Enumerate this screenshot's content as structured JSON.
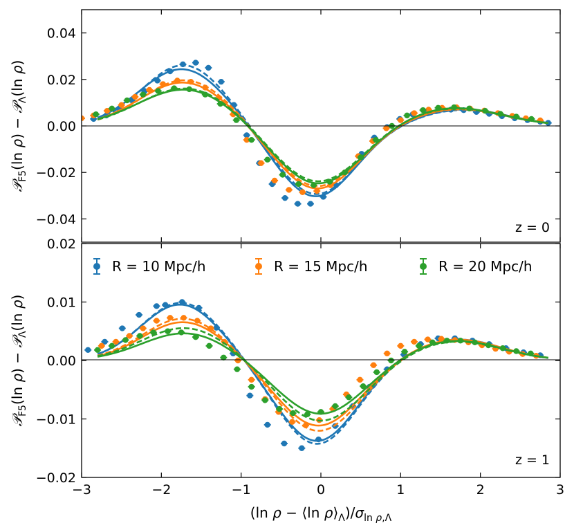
{
  "figure": {
    "xlabel": "(ln ρ − ⟨ln ρ⟩Λ)/σln ρ,Λ",
    "colors": {
      "R10": "#1f77b4",
      "R15": "#ff7f0e",
      "R20": "#2ca02c"
    }
  },
  "chart_data": [
    {
      "type": "scatter",
      "panel": "top",
      "annotation": "z = 0",
      "ylabel": "PF5(ln ρ) − PΛ(ln ρ)",
      "xlim": [
        -3,
        3
      ],
      "ylim": [
        -0.05,
        0.05
      ],
      "x_ticks": [
        -3,
        -2,
        -1,
        0,
        1,
        2,
        3
      ],
      "x_tick_labels": [
        "",
        "",
        "",
        "",
        "",
        "",
        ""
      ],
      "y_ticks": [
        -0.04,
        -0.02,
        0.0,
        0.02,
        0.04
      ],
      "y_tick_labels": [
        "−0.04",
        "−0.02",
        "0.00",
        "0.02",
        "0.04"
      ],
      "series": [
        {
          "name": "R = 10 Mpc/h",
          "color": "#1f77b4",
          "x": [
            -2.85,
            -2.69,
            -2.53,
            -2.37,
            -2.21,
            -2.05,
            -1.89,
            -1.73,
            -1.57,
            -1.41,
            -1.25,
            -1.09,
            -0.93,
            -0.77,
            -0.61,
            -0.45,
            -0.29,
            -0.13,
            0.03,
            0.19,
            0.35,
            0.51,
            0.67,
            0.83,
            0.99,
            1.15,
            1.31,
            1.47,
            1.63,
            1.79,
            1.95,
            2.11,
            2.27,
            2.43,
            2.59,
            2.75,
            2.85
          ],
          "y": [
            0.003,
            0.0045,
            0.0075,
            0.011,
            0.015,
            0.0195,
            0.0235,
            0.0265,
            0.0272,
            0.025,
            0.019,
            0.009,
            -0.004,
            -0.016,
            -0.025,
            -0.031,
            -0.0335,
            -0.0335,
            -0.0305,
            -0.0255,
            -0.019,
            -0.012,
            -0.005,
            -0.0005,
            0.003,
            0.005,
            0.0062,
            0.0068,
            0.007,
            0.0068,
            0.006,
            0.0052,
            0.0042,
            0.0033,
            0.0025,
            0.0018,
            0.0013
          ],
          "model_solid": {
            "amp1": 0.0245,
            "mu1": -1.74,
            "s1": 0.54,
            "amp2": -0.0305,
            "mu2": -0.07,
            "s2": 0.5,
            "amp3": 0.0071,
            "mu3": 1.78,
            "s3": 0.58
          },
          "model_dashed": {
            "amp1": 0.0262,
            "mu1": -1.72,
            "s1": 0.52,
            "amp2": -0.0295,
            "mu2": -0.06,
            "s2": 0.5,
            "amp3": 0.0069,
            "mu3": 1.78,
            "s3": 0.58
          }
        },
        {
          "name": "R = 15 Mpc/h",
          "color": "#ff7f0e",
          "x": [
            -3.0,
            -2.85,
            -2.68,
            -2.5,
            -2.33,
            -2.15,
            -1.98,
            -1.8,
            -1.63,
            -1.45,
            -1.28,
            -1.1,
            -0.93,
            -0.75,
            -0.58,
            -0.4,
            -0.23,
            -0.05,
            0.12,
            0.3,
            0.47,
            0.65,
            0.82,
            1.0,
            1.17,
            1.35,
            1.52,
            1.7,
            1.87,
            2.05,
            2.22,
            2.4,
            2.57,
            2.75
          ],
          "y": [
            0.0033,
            0.0045,
            0.0065,
            0.009,
            0.0125,
            0.0155,
            0.018,
            0.0195,
            0.019,
            0.0165,
            0.012,
            0.005,
            -0.006,
            -0.016,
            -0.0235,
            -0.0275,
            -0.0285,
            -0.028,
            -0.0255,
            -0.02,
            -0.013,
            -0.0065,
            -0.001,
            0.0025,
            0.0055,
            0.007,
            0.0078,
            0.008,
            0.0075,
            0.0066,
            0.0055,
            0.0043,
            0.0033,
            0.0024
          ],
          "model_solid": {
            "amp1": 0.0188,
            "mu1": -1.72,
            "s1": 0.56,
            "amp2": -0.0272,
            "mu2": -0.05,
            "s2": 0.52,
            "amp3": 0.0074,
            "mu3": 1.72,
            "s3": 0.6
          },
          "model_dashed": {
            "amp1": 0.0198,
            "mu1": -1.7,
            "s1": 0.55,
            "amp2": -0.0262,
            "mu2": -0.05,
            "s2": 0.52,
            "amp3": 0.0072,
            "mu3": 1.72,
            "s3": 0.6
          }
        },
        {
          "name": "R = 20 Mpc/h",
          "color": "#2ca02c",
          "x": [
            -2.82,
            -2.62,
            -2.43,
            -2.23,
            -2.04,
            -1.84,
            -1.65,
            -1.45,
            -1.26,
            -1.06,
            -0.87,
            -0.67,
            -0.48,
            -0.28,
            -0.09,
            0.11,
            0.3,
            0.5,
            0.69,
            0.89,
            1.08,
            1.28,
            1.47,
            1.67,
            1.86,
            2.06,
            2.25,
            2.45,
            2.64
          ],
          "y": [
            0.005,
            0.0075,
            0.011,
            0.0135,
            0.015,
            0.0162,
            0.0158,
            0.0135,
            0.0095,
            0.0025,
            -0.006,
            -0.0145,
            -0.021,
            -0.025,
            -0.0255,
            -0.024,
            -0.02,
            -0.0135,
            -0.006,
            0.0,
            0.0045,
            0.0068,
            0.0078,
            0.008,
            0.0075,
            0.0065,
            0.0052,
            0.004,
            0.003
          ],
          "model_solid": {
            "amp1": 0.0158,
            "mu1": -1.7,
            "s1": 0.6,
            "amp2": -0.0252,
            "mu2": -0.04,
            "s2": 0.54,
            "amp3": 0.0078,
            "mu3": 1.66,
            "s3": 0.62
          },
          "model_dashed": {
            "amp1": 0.0163,
            "mu1": -1.69,
            "s1": 0.59,
            "amp2": -0.0243,
            "mu2": -0.04,
            "s2": 0.54,
            "amp3": 0.0076,
            "mu3": 1.66,
            "s3": 0.62
          }
        }
      ]
    },
    {
      "type": "scatter",
      "panel": "bottom",
      "annotation": "z = 1",
      "ylabel": "PF5(ln ρ) − PΛ(ln ρ)",
      "xlim": [
        -3,
        3
      ],
      "ylim": [
        -0.02,
        0.02
      ],
      "x_ticks": [
        -3,
        -2,
        -1,
        0,
        1,
        2,
        3
      ],
      "x_tick_labels": [
        "−3",
        "−2",
        "−1",
        "0",
        "1",
        "2",
        "3"
      ],
      "y_ticks": [
        -0.02,
        -0.01,
        0.0,
        0.01,
        0.02
      ],
      "y_tick_labels": [
        "−0.02",
        "−0.01",
        "0.00",
        "0.01",
        "0.02"
      ],
      "legend": {
        "placement": "top",
        "entries": [
          "R = 10 Mpc/h",
          "R = 15 Mpc/h",
          "R = 20 Mpc/h"
        ]
      },
      "series": [
        {
          "name": "R = 10 Mpc/h",
          "color": "#1f77b4",
          "x": [
            -2.92,
            -2.71,
            -2.49,
            -2.28,
            -2.06,
            -1.95,
            -1.74,
            -1.53,
            -1.31,
            -1.1,
            -0.89,
            -0.67,
            -0.46,
            -0.24,
            -0.03,
            0.18,
            0.4,
            0.61,
            0.83,
            1.04,
            1.25,
            1.47,
            1.68,
            1.9,
            2.11,
            2.32,
            2.54,
            2.75
          ],
          "y": [
            0.0018,
            0.0032,
            0.0055,
            0.0078,
            0.0093,
            0.0095,
            0.01,
            0.009,
            0.0056,
            0.0012,
            -0.006,
            -0.011,
            -0.0142,
            -0.015,
            -0.0135,
            -0.0112,
            -0.0078,
            -0.0045,
            -0.0015,
            0.001,
            0.0028,
            0.0038,
            0.0038,
            0.0034,
            0.0028,
            0.0021,
            0.0014,
            0.0009
          ],
          "model_solid": {
            "amp1": 0.0096,
            "mu1": -1.76,
            "s1": 0.5,
            "amp2": -0.0138,
            "mu2": -0.05,
            "s2": 0.5,
            "amp3": 0.0036,
            "mu3": 1.72,
            "s3": 0.55
          },
          "model_dashed": {
            "amp1": 0.0099,
            "mu1": -1.75,
            "s1": 0.5,
            "amp2": -0.0143,
            "mu2": -0.05,
            "s2": 0.5,
            "amp3": 0.0035,
            "mu3": 1.72,
            "s3": 0.55
          }
        },
        {
          "name": "R = 15 Mpc/h",
          "color": "#ff7f0e",
          "x": [
            -2.75,
            -2.57,
            -2.4,
            -2.23,
            -2.06,
            -1.89,
            -1.72,
            -1.55,
            -1.38,
            -1.21,
            -1.04,
            -0.87,
            -0.7,
            -0.53,
            -0.36,
            -0.19,
            -0.02,
            0.15,
            0.32,
            0.49,
            0.66,
            0.83,
            1.0,
            1.17,
            1.34,
            1.51,
            1.68,
            1.85,
            2.02,
            2.19,
            2.36,
            2.53,
            2.7
          ],
          "y": [
            0.0025,
            0.0032,
            0.0042,
            0.0055,
            0.0068,
            0.0073,
            0.0073,
            0.0068,
            0.0055,
            0.0032,
            0.0,
            -0.0033,
            -0.0066,
            -0.0088,
            -0.0105,
            -0.0111,
            -0.0102,
            -0.0083,
            -0.0058,
            -0.0033,
            -0.0008,
            0.0012,
            0.0025,
            0.0032,
            0.0036,
            0.0037,
            0.0035,
            0.0031,
            0.0026,
            0.002,
            0.0015,
            0.0011,
            0.0008
          ],
          "model_solid": {
            "amp1": 0.0066,
            "mu1": -1.72,
            "s1": 0.52,
            "amp2": -0.0112,
            "mu2": -0.03,
            "s2": 0.52,
            "amp3": 0.0036,
            "mu3": 1.7,
            "s3": 0.57
          },
          "model_dashed": {
            "amp1": 0.0072,
            "mu1": -1.72,
            "s1": 0.52,
            "amp2": -0.0121,
            "mu2": -0.03,
            "s2": 0.52,
            "amp3": 0.0035,
            "mu3": 1.7,
            "s3": 0.57
          }
        },
        {
          "name": "R = 20 Mpc/h",
          "color": "#2ca02c",
          "x": [
            -2.8,
            -2.62,
            -2.45,
            -2.27,
            -2.1,
            -1.92,
            -1.75,
            -1.57,
            -1.4,
            -1.22,
            -1.05,
            -0.87,
            -0.7,
            -0.52,
            -0.35,
            -0.17,
            0.0,
            0.18,
            0.35,
            0.53,
            0.7,
            0.88,
            1.05,
            1.23,
            1.4,
            1.58,
            1.75,
            1.93,
            2.1,
            2.28,
            2.45,
            2.63
          ],
          "y": [
            0.0018,
            0.0025,
            0.0035,
            0.0042,
            0.0048,
            0.005,
            0.0048,
            0.004,
            0.0025,
            0.0005,
            -0.0015,
            -0.0045,
            -0.0068,
            -0.0083,
            -0.009,
            -0.0092,
            -0.0088,
            -0.0078,
            -0.0063,
            -0.0044,
            -0.002,
            0.0,
            0.0015,
            0.0025,
            0.0031,
            0.0034,
            0.0034,
            0.0031,
            0.0026,
            0.0021,
            0.0016,
            0.0012
          ],
          "model_solid": {
            "amp1": 0.0047,
            "mu1": -1.7,
            "s1": 0.55,
            "amp2": -0.0092,
            "mu2": 0.0,
            "s2": 0.54,
            "amp3": 0.0034,
            "mu3": 1.68,
            "s3": 0.59
          },
          "model_dashed": {
            "amp1": 0.0056,
            "mu1": -1.7,
            "s1": 0.55,
            "amp2": -0.0104,
            "mu2": 0.0,
            "s2": 0.54,
            "amp3": 0.0033,
            "mu3": 1.68,
            "s3": 0.59
          }
        }
      ]
    }
  ]
}
